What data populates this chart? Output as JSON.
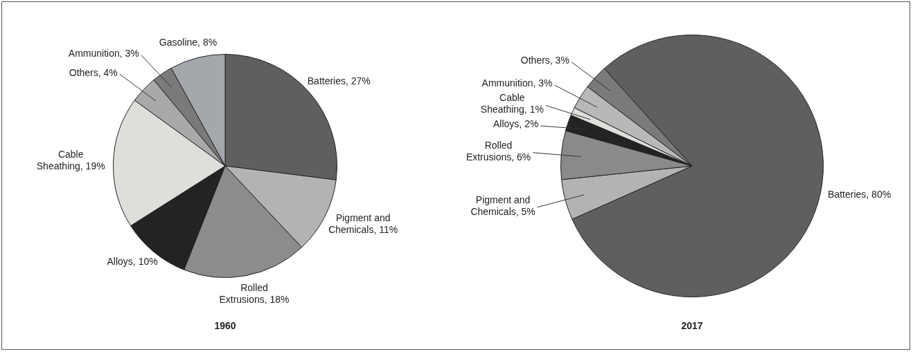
{
  "chart_data": [
    {
      "type": "pie",
      "title": "1960",
      "categories": [
        "Batteries",
        "Pigment and Chemicals",
        "Rolled Extrusions",
        "Alloys",
        "Cable Sheathing",
        "Others",
        "Ammunition",
        "Gasoline"
      ],
      "values": [
        27,
        11,
        18,
        10,
        19,
        4,
        3,
        8
      ],
      "value_labels": [
        "27%",
        "11%",
        "18%",
        "10%",
        "19%",
        "4%",
        "3%",
        "8%"
      ],
      "colors": [
        "#5f5f5f",
        "#b3b3b3",
        "#8c8c8c",
        "#232323",
        "#e0dedb",
        "#a9a9a9",
        "#7a7a7a",
        "#a4a8ad"
      ],
      "legend": false
    },
    {
      "type": "pie",
      "title": "2017",
      "categories": [
        "Batteries",
        "Pigment and Chemicals",
        "Rolled Extrusions",
        "Alloys",
        "Cable Sheathing",
        "Ammunition",
        "Others"
      ],
      "values": [
        80,
        5,
        6,
        2,
        1,
        3,
        3
      ],
      "value_labels": [
        "80%",
        "5%",
        "6%",
        "2%",
        "1%",
        "3%",
        "3%"
      ],
      "colors": [
        "#5f5f5f",
        "#b3b3b3",
        "#8a8a8a",
        "#232323",
        "#e0dedb",
        "#b8b8b8",
        "#7a7a7a"
      ],
      "legend": false
    }
  ]
}
